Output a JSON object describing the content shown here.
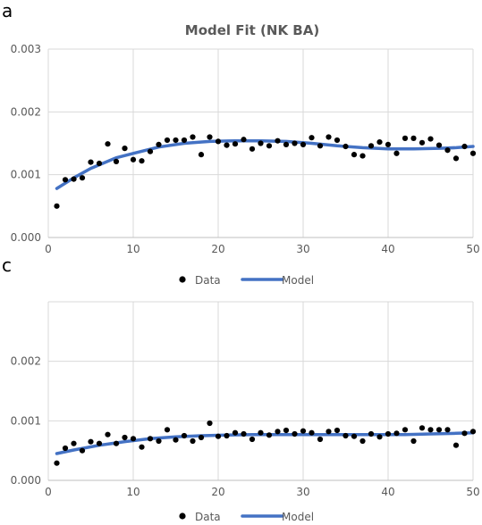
{
  "panels": [
    {
      "letter": "a"
    },
    {
      "letter": "c"
    }
  ],
  "colors": {
    "data_marker": "#000000",
    "model_line": "#4472c4",
    "grid": "#d9d9d9",
    "text": "#595959"
  },
  "chart_data": [
    {
      "type": "scatter",
      "title": "Model Fit (NK BA)",
      "xlabel": "",
      "ylabel": "",
      "xlim": [
        0,
        50
      ],
      "ylim": [
        0,
        0.003
      ],
      "x_ticks": [
        "0",
        "10",
        "20",
        "30",
        "40",
        "50"
      ],
      "y_ticks": [
        "0.000",
        "0.001",
        "0.002",
        "0.003"
      ],
      "grid": true,
      "legend": "bottom",
      "series": [
        {
          "name": "Data",
          "kind": "points",
          "x": [
            1,
            2,
            3,
            4,
            5,
            6,
            7,
            8,
            9,
            10,
            11,
            12,
            13,
            14,
            15,
            16,
            17,
            18,
            19,
            20,
            21,
            22,
            23,
            24,
            25,
            26,
            27,
            28,
            29,
            30,
            31,
            32,
            33,
            34,
            35,
            36,
            37,
            38,
            39,
            40,
            41,
            42,
            43,
            44,
            45,
            46,
            47,
            48,
            49,
            50
          ],
          "y": [
            0.0005,
            0.00092,
            0.00093,
            0.00095,
            0.0012,
            0.00118,
            0.00149,
            0.00121,
            0.00142,
            0.00124,
            0.00122,
            0.00137,
            0.00148,
            0.00155,
            0.00155,
            0.00155,
            0.0016,
            0.00132,
            0.0016,
            0.00153,
            0.00147,
            0.00149,
            0.00156,
            0.00141,
            0.0015,
            0.00146,
            0.00154,
            0.00148,
            0.0015,
            0.00148,
            0.00159,
            0.00146,
            0.0016,
            0.00155,
            0.00145,
            0.00132,
            0.0013,
            0.00146,
            0.00152,
            0.00148,
            0.00134,
            0.00158,
            0.00158,
            0.00151,
            0.00157,
            0.00147,
            0.00139,
            0.00126,
            0.00145,
            0.00134
          ]
        },
        {
          "name": "Model",
          "kind": "line",
          "x": [
            1,
            3,
            5,
            8,
            10,
            13,
            16,
            19,
            22,
            25,
            28,
            31,
            34,
            37,
            40,
            43,
            46,
            48,
            50
          ],
          "y": [
            0.00078,
            0.00095,
            0.0011,
            0.00127,
            0.00134,
            0.00144,
            0.0015,
            0.00153,
            0.00154,
            0.00154,
            0.00153,
            0.0015,
            0.00146,
            0.00143,
            0.00141,
            0.00141,
            0.00142,
            0.00143,
            0.00145
          ]
        }
      ]
    },
    {
      "type": "scatter",
      "title": "",
      "xlabel": "",
      "ylabel": "",
      "xlim": [
        0,
        50
      ],
      "ylim": [
        0,
        0.003
      ],
      "x_ticks": [
        "0",
        "10",
        "20",
        "30",
        "40",
        "50"
      ],
      "y_ticks": [
        "0.000",
        "0.001",
        "0.002"
      ],
      "grid": true,
      "legend": "bottom",
      "series": [
        {
          "name": "Data",
          "kind": "points",
          "x": [
            1,
            2,
            3,
            4,
            5,
            6,
            7,
            8,
            9,
            10,
            11,
            12,
            13,
            14,
            15,
            16,
            17,
            18,
            19,
            20,
            21,
            22,
            23,
            24,
            25,
            26,
            27,
            28,
            29,
            30,
            31,
            32,
            33,
            34,
            35,
            36,
            37,
            38,
            39,
            40,
            41,
            42,
            43,
            44,
            45,
            46,
            47,
            48,
            49,
            50
          ],
          "y": [
            0.00029,
            0.00054,
            0.00062,
            0.0005,
            0.00065,
            0.00062,
            0.00077,
            0.00062,
            0.00072,
            0.0007,
            0.00056,
            0.0007,
            0.00066,
            0.00085,
            0.00068,
            0.00075,
            0.00066,
            0.00072,
            0.00096,
            0.00074,
            0.00075,
            0.0008,
            0.00078,
            0.00069,
            0.0008,
            0.00076,
            0.00082,
            0.00084,
            0.00078,
            0.00083,
            0.0008,
            0.00069,
            0.00082,
            0.00084,
            0.00075,
            0.00074,
            0.00066,
            0.00078,
            0.00073,
            0.00078,
            0.00079,
            0.00085,
            0.00066,
            0.00088,
            0.00085,
            0.00085,
            0.00085,
            0.00059,
            0.00079,
            0.00082
          ]
        },
        {
          "name": "Model",
          "kind": "line",
          "x": [
            1,
            3,
            6,
            9,
            12,
            15,
            18,
            21,
            24,
            27,
            30,
            33,
            36,
            39,
            42,
            45,
            48,
            50
          ],
          "y": [
            0.00045,
            0.00051,
            0.00059,
            0.00065,
            0.0007,
            0.00073,
            0.00075,
            0.00076,
            0.00077,
            0.00077,
            0.00077,
            0.00077,
            0.00077,
            0.00077,
            0.00077,
            0.00078,
            0.00079,
            0.0008
          ]
        }
      ]
    }
  ]
}
